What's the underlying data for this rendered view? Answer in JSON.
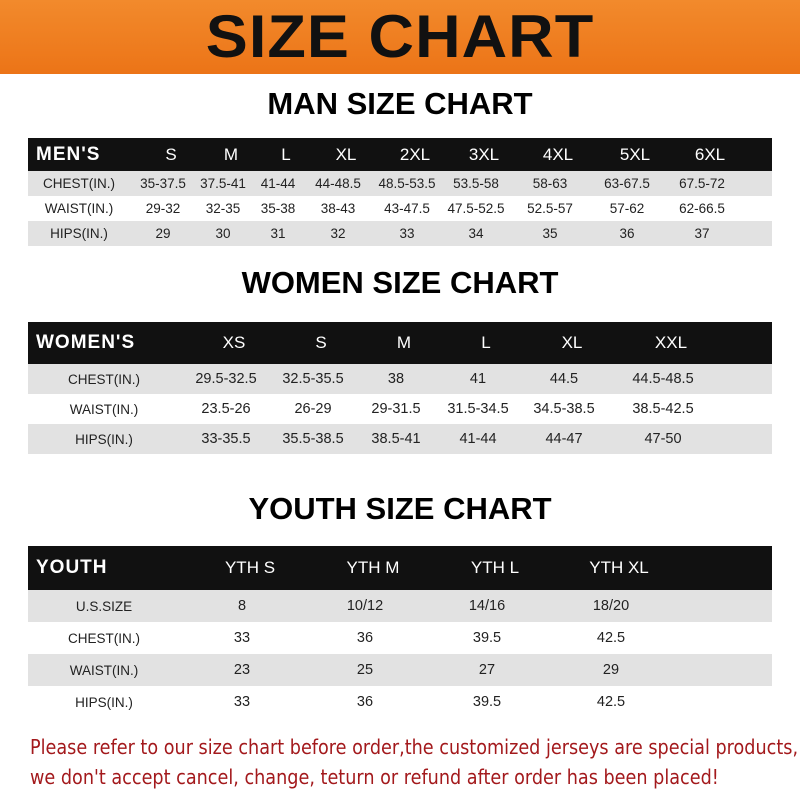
{
  "banner": {
    "title": "SIZE CHART"
  },
  "colors": {
    "banner": "#ec7417",
    "header_row": "#111111",
    "note_text": "#a3191c"
  },
  "men": {
    "title": "MAN SIZE CHART",
    "headers": [
      "MEN'S",
      "S",
      "M",
      "L",
      "XL",
      "2XL",
      "3XL",
      "4XL",
      "5XL",
      "6XL"
    ],
    "rows": [
      [
        "CHEST(IN.)",
        "35-37.5",
        "37.5-41",
        "41-44",
        "44-48.5",
        "48.5-53.5",
        "53.5-58",
        "58-63",
        "63-67.5",
        "67.5-72"
      ],
      [
        "WAIST(IN.)",
        "29-32",
        "32-35",
        "35-38",
        "38-43",
        "43-47.5",
        "47.5-52.5",
        "52.5-57",
        "57-62",
        "62-66.5"
      ],
      [
        "HIPS(IN.)",
        "29",
        "30",
        "31",
        "32",
        "33",
        "34",
        "35",
        "36",
        "37"
      ]
    ]
  },
  "women": {
    "title": "WOMEN SIZE CHART",
    "headers": [
      "WOMEN'S",
      "XS",
      "S",
      "M",
      "L",
      "XL",
      "XXL"
    ],
    "rows": [
      [
        "CHEST(IN.)",
        "29.5-32.5",
        "32.5-35.5",
        "38",
        "41",
        "44.5",
        "44.5-48.5"
      ],
      [
        "WAIST(IN.)",
        "23.5-26",
        "26-29",
        "29-31.5",
        "31.5-34.5",
        "34.5-38.5",
        "38.5-42.5"
      ],
      [
        "HIPS(IN.)",
        "33-35.5",
        "35.5-38.5",
        "38.5-41",
        "41-44",
        "44-47",
        "47-50"
      ]
    ]
  },
  "youth": {
    "title": "YOUTH SIZE CHART",
    "headers": [
      "YOUTH",
      "YTH S",
      "YTH M",
      "YTH L",
      "YTH XL"
    ],
    "rows": [
      [
        "U.S.SIZE",
        "8",
        "10/12",
        "14/16",
        "18/20"
      ],
      [
        "CHEST(IN.)",
        "33",
        "36",
        "39.5",
        "42.5"
      ],
      [
        "WAIST(IN.)",
        "23",
        "25",
        "27",
        "29"
      ],
      [
        "HIPS(IN.)",
        "33",
        "36",
        "39.5",
        "42.5"
      ]
    ]
  },
  "note": {
    "line1": "Please refer to our size chart before order,the customized jerseys are special products,",
    "line2": "we don't accept cancel, change, teturn or refund after order has been placed!"
  }
}
